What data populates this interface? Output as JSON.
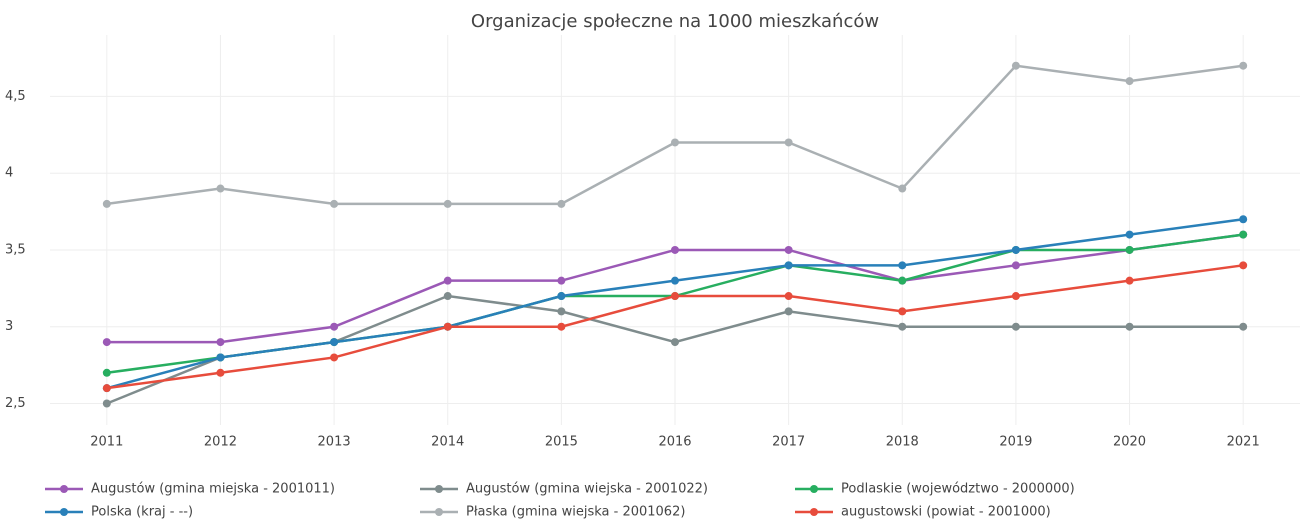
{
  "chart_data": {
    "type": "line",
    "title": "Organizacje społeczne na 1000 mieszkańców",
    "x": [
      2011,
      2012,
      2013,
      2014,
      2015,
      2016,
      2017,
      2018,
      2019,
      2020,
      2021
    ],
    "xlim": [
      2010.5,
      2021.5
    ],
    "xticks": [
      2011,
      2012,
      2013,
      2014,
      2015,
      2016,
      2017,
      2018,
      2019,
      2020,
      2021
    ],
    "ylim": [
      2.36,
      4.9
    ],
    "yticks": [
      {
        "value": 2.5,
        "label": "2,5"
      },
      3,
      {
        "value": 3.5,
        "label": "3,5"
      },
      4,
      {
        "value": 4.5,
        "label": "4,5"
      }
    ],
    "grid": true,
    "legend": "bottom",
    "series": [
      {
        "name": "Augustów (gmina miejska - 2001011)",
        "color": "#9b59b6",
        "values": [
          2.9,
          2.9,
          3.0,
          3.3,
          3.3,
          3.5,
          3.5,
          3.3,
          3.4,
          3.5,
          3.6
        ]
      },
      {
        "name": "Augustów (gmina wiejska - 2001022)",
        "color": "#7f8c8d",
        "values": [
          2.5,
          2.8,
          2.9,
          3.2,
          3.1,
          2.9,
          3.1,
          3.0,
          3.0,
          3.0,
          3.0
        ]
      },
      {
        "name": "Podlaskie (województwo - 2000000)",
        "color": "#27ae60",
        "values": [
          2.7,
          2.8,
          2.9,
          3.0,
          3.2,
          3.2,
          3.4,
          3.3,
          3.5,
          3.5,
          3.6
        ]
      },
      {
        "name": "Polska (kraj - --)",
        "color": "#2980b9",
        "values": [
          2.6,
          2.8,
          2.9,
          3.0,
          3.2,
          3.3,
          3.4,
          3.4,
          3.5,
          3.6,
          3.7
        ]
      },
      {
        "name": "Płaska (gmina wiejska - 2001062)",
        "color": "#aab0b3",
        "values": [
          3.8,
          3.9,
          3.8,
          3.8,
          3.8,
          4.2,
          4.2,
          3.9,
          4.7,
          4.6,
          4.7
        ]
      },
      {
        "name": "augustowski (powiat - 2001000)",
        "color": "#e74c3c",
        "values": [
          2.6,
          2.7,
          2.8,
          3.0,
          3.0,
          3.2,
          3.2,
          3.1,
          3.2,
          3.3,
          3.4
        ]
      }
    ]
  }
}
